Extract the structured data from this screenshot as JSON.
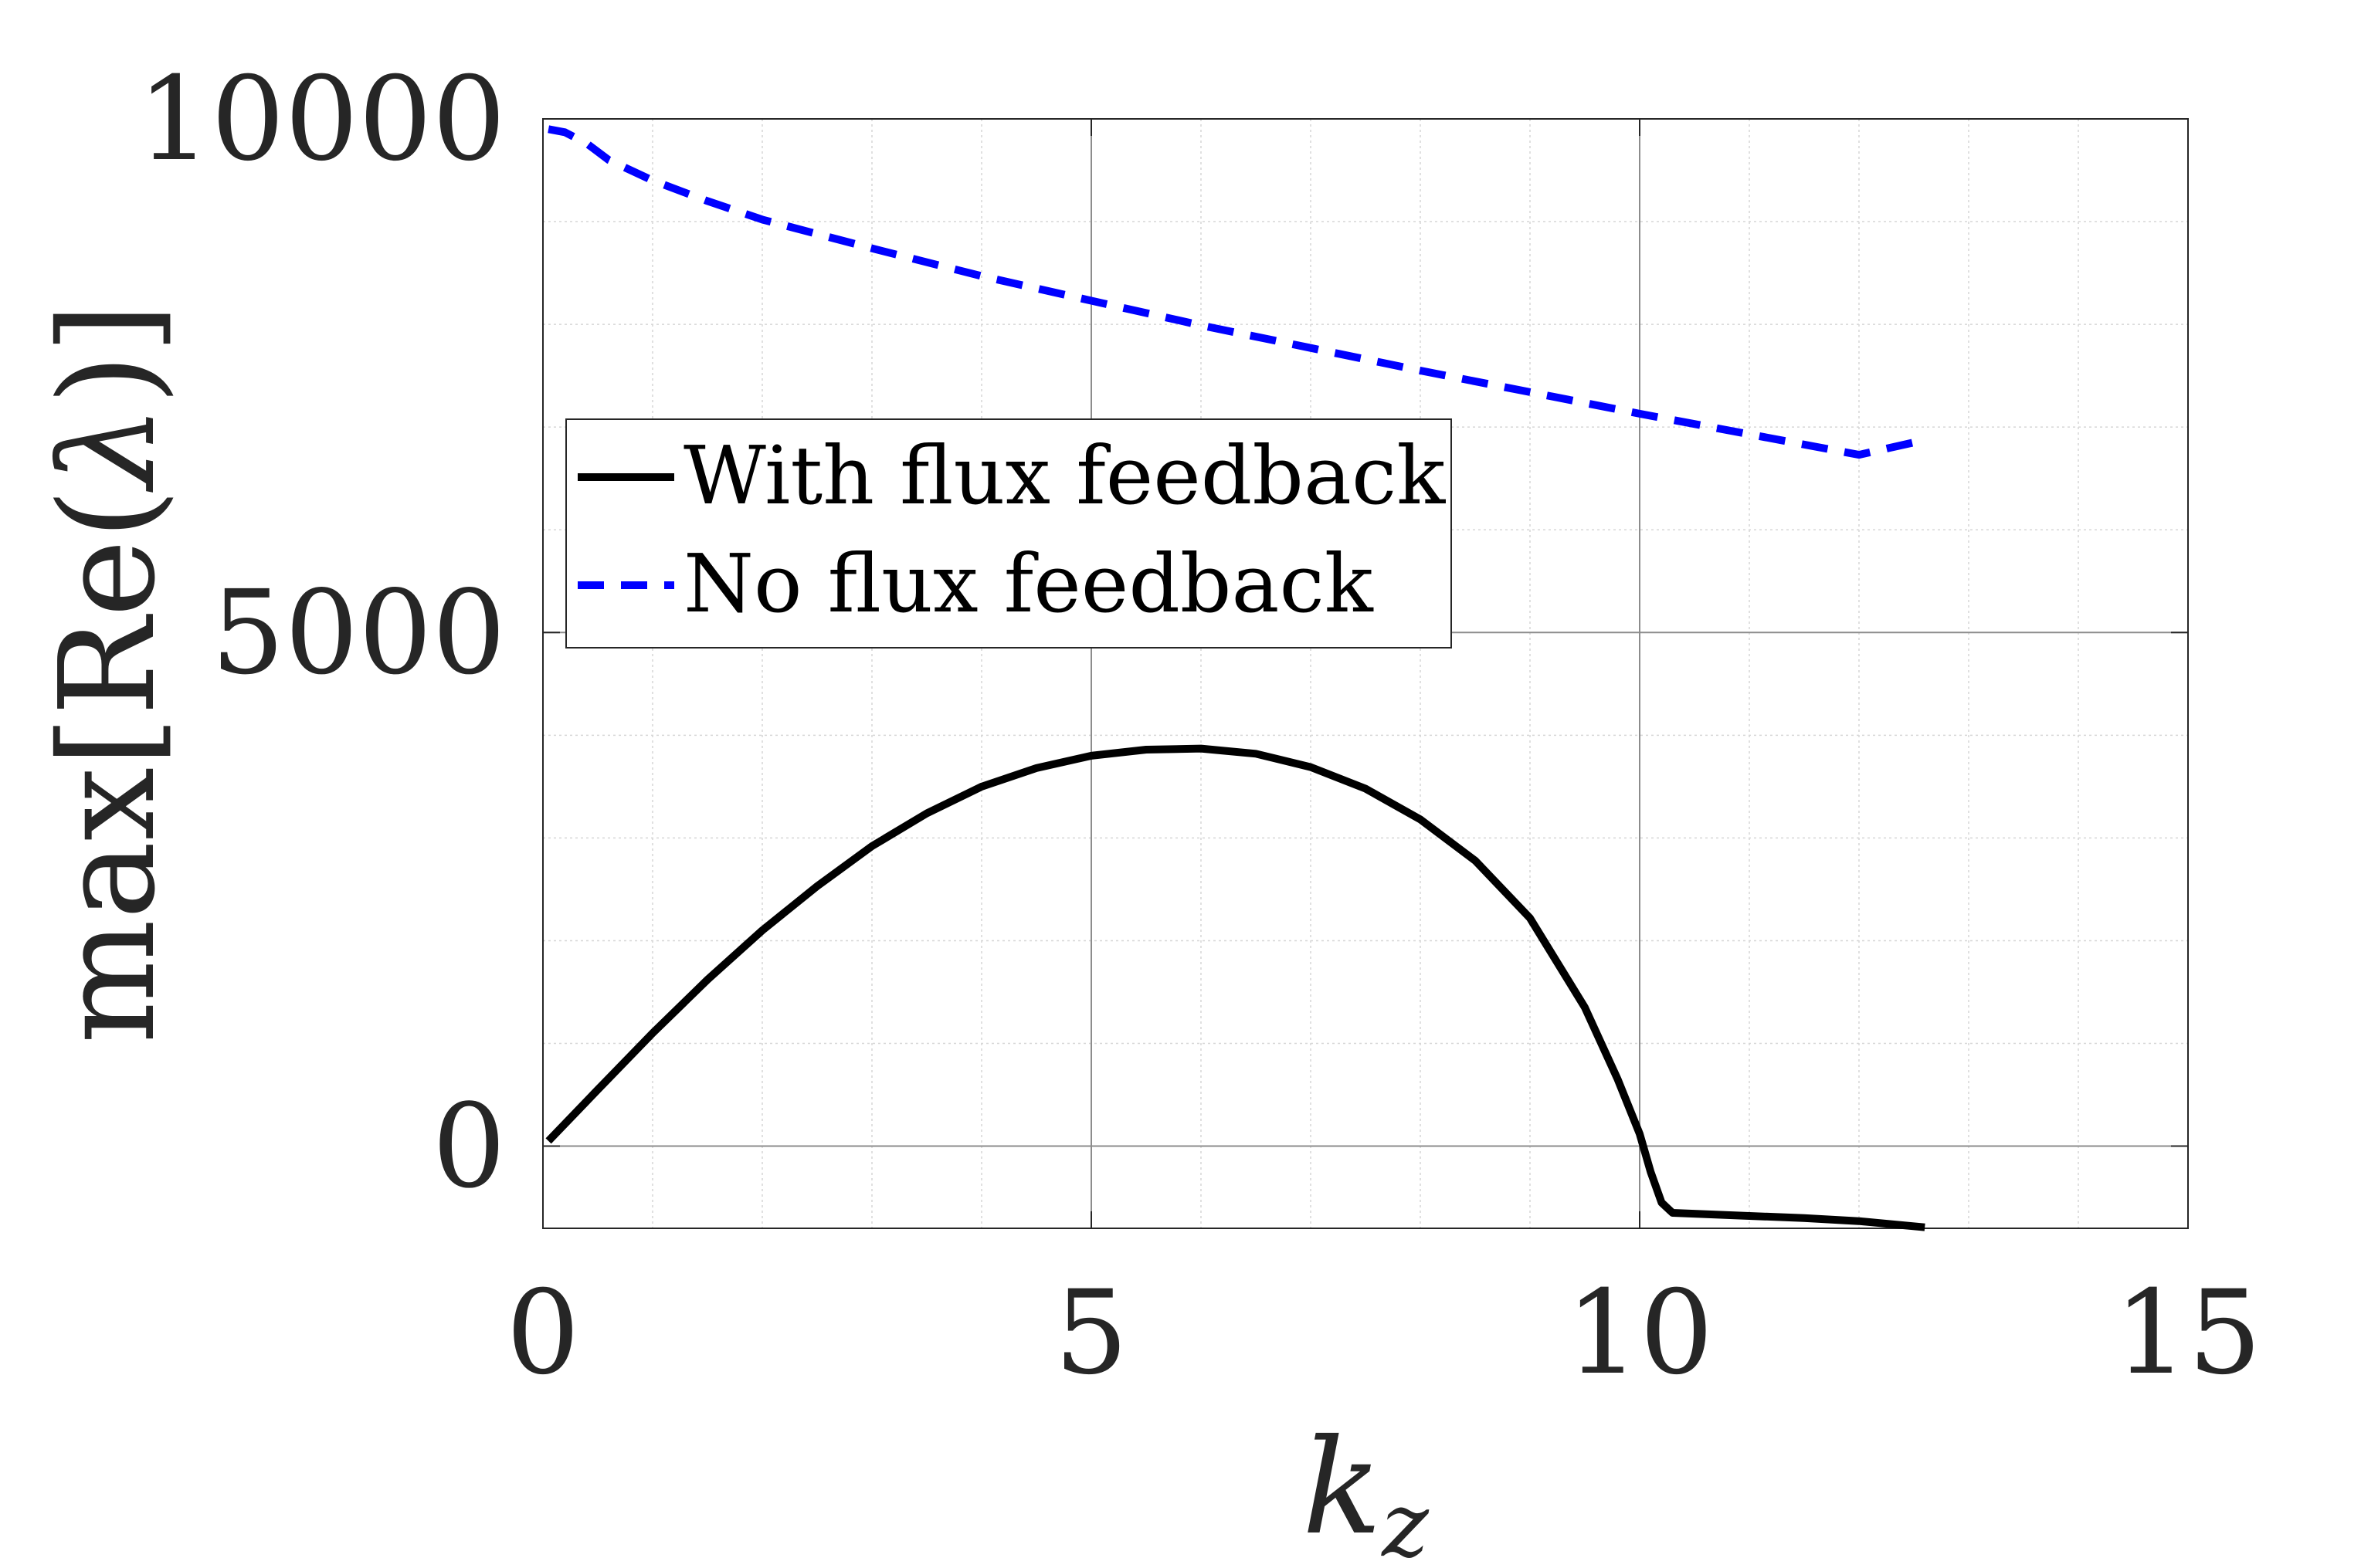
{
  "chart_data": {
    "type": "line",
    "xlabel_base": "k",
    "xlabel_sub": "z",
    "ylabel_pre": "max[Re(",
    "ylabel_sym": "λ",
    "ylabel_post": ")]",
    "xlim": [
      0,
      15
    ],
    "ylim": [
      -800,
      10000
    ],
    "xticks": [
      0,
      5,
      10,
      15
    ],
    "xtick_labels": [
      "0",
      "5",
      "10",
      "15"
    ],
    "yticks": [
      0,
      5000,
      10000
    ],
    "ytick_labels": [
      "0",
      "5000",
      "10000"
    ],
    "grid": true,
    "minor_grid": true,
    "legend_position": "upper-left",
    "series": [
      {
        "name": "With flux feedback",
        "color": "#000000",
        "style": "solid",
        "x": [
          0.05,
          0.5,
          1,
          1.5,
          2,
          2.5,
          3,
          3.5,
          4,
          4.5,
          5,
          5.5,
          6,
          6.5,
          7,
          7.5,
          8,
          8.5,
          9,
          9.5,
          9.8,
          10,
          10.1,
          10.2,
          10.3,
          11,
          11.5,
          12,
          12.6
        ],
        "y": [
          50,
          550,
          1100,
          1620,
          2100,
          2530,
          2920,
          3240,
          3500,
          3680,
          3800,
          3860,
          3870,
          3820,
          3690,
          3480,
          3180,
          2780,
          2220,
          1350,
          650,
          120,
          -250,
          -550,
          -650,
          -680,
          -700,
          -730,
          -790
        ]
      },
      {
        "name": "No flux feedback",
        "color": "#0000ff",
        "style": "dashed",
        "x": [
          0.05,
          0.2,
          0.4,
          0.6,
          1,
          1.5,
          2,
          3,
          4,
          5,
          6,
          7,
          8,
          9,
          10,
          11,
          12,
          12.5
        ],
        "y": [
          9900,
          9870,
          9760,
          9600,
          9400,
          9200,
          9020,
          8740,
          8470,
          8230,
          7990,
          7770,
          7550,
          7340,
          7130,
          6930,
          6730,
          6850
        ]
      }
    ]
  }
}
